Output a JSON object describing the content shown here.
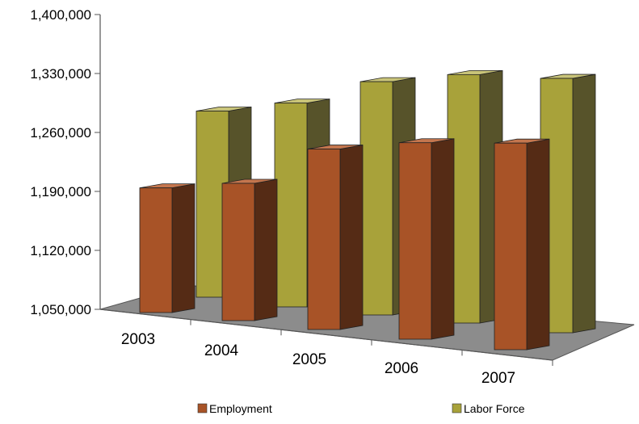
{
  "chart_data": {
    "type": "bar",
    "title": "",
    "xlabel": "",
    "ylabel": "",
    "categories": [
      "2003",
      "2004",
      "2005",
      "2006",
      "2007"
    ],
    "series": [
      {
        "name": "Employment",
        "values": [
          1198000,
          1213000,
          1256000,
          1266000,
          1269000
        ]
      },
      {
        "name": "Labor Force",
        "values": [
          1271000,
          1292000,
          1327000,
          1345000,
          1352000
        ]
      }
    ],
    "ylim": [
      1050000,
      1400000
    ],
    "yticks": [
      "1,050,000",
      "1,120,000",
      "1,190,000",
      "1,260,000",
      "1,330,000",
      "1,400,000"
    ],
    "three_d": true,
    "legend_position": "bottom",
    "colors": {
      "Employment": {
        "front": "#A85327",
        "side": "#552B15",
        "top": "#C4764E"
      },
      "Labor Force": {
        "front": "#A8A23A",
        "side": "#57532A",
        "top": "#C9C479"
      },
      "floor": "#8C8C8C"
    }
  }
}
